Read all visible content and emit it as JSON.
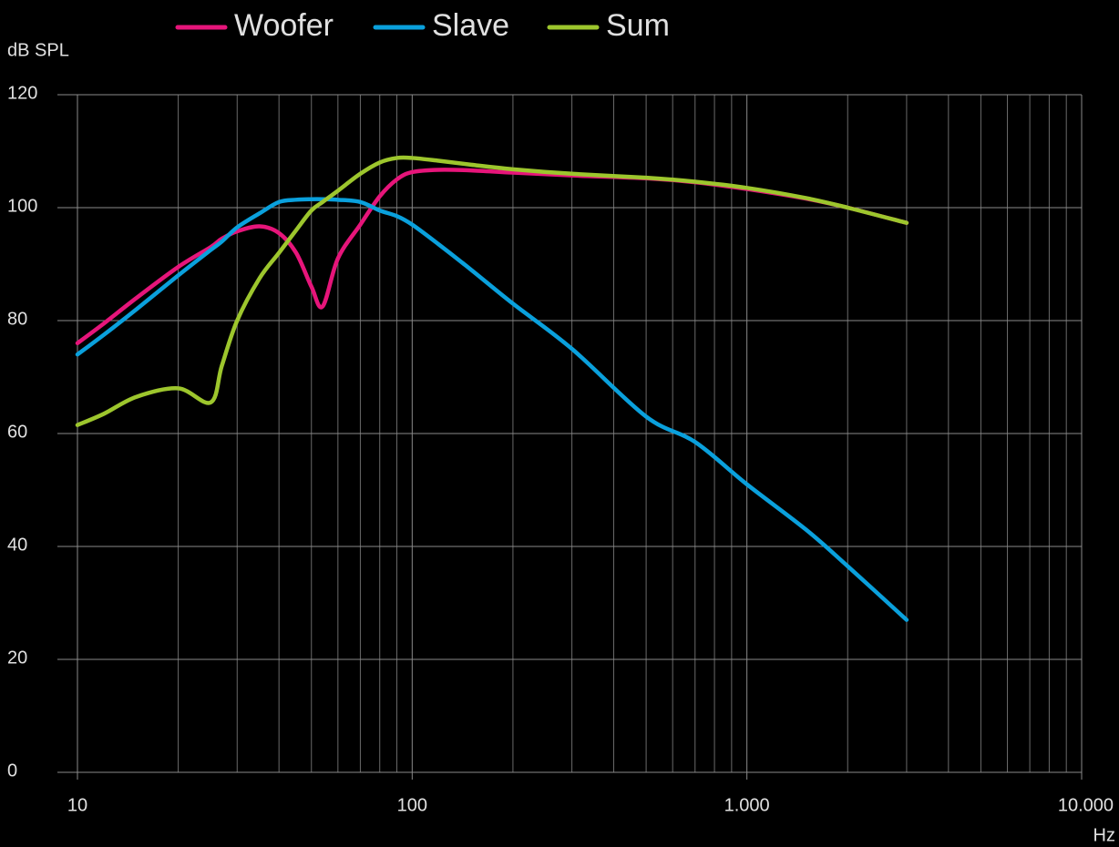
{
  "chart_data": {
    "type": "line",
    "ylabel": "dB SPL",
    "xlabel": "Hz",
    "x": [
      10,
      12,
      15,
      20,
      25,
      27,
      30,
      35,
      40,
      45,
      50,
      54,
      60,
      70,
      80,
      90,
      100,
      120,
      150,
      200,
      300,
      500,
      700,
      1000,
      1500,
      2000,
      3000
    ],
    "series": [
      {
        "name": "Woofer",
        "color": "#e6157a",
        "values": [
          76,
          79.5,
          84,
          89.5,
          93,
          94.5,
          95.8,
          96.7,
          95.5,
          92,
          86,
          82.5,
          91,
          97,
          102,
          105,
          106.3,
          106.7,
          106.6,
          106.2,
          105.7,
          105.2,
          104.5,
          103.3,
          101.6,
          100,
          97.3
        ]
      },
      {
        "name": "Slave",
        "color": "#0aa0dc",
        "values": [
          74,
          77.5,
          82,
          88,
          92.5,
          94,
          96.5,
          99,
          101,
          101.4,
          101.5,
          101.5,
          101.4,
          101,
          99.5,
          98.5,
          97,
          93.5,
          89,
          83,
          75,
          63,
          58.5,
          51,
          43,
          36.5,
          27
        ]
      },
      {
        "name": "Sum",
        "color": "#9dc62d",
        "values": [
          61.5,
          63.5,
          66.5,
          68,
          65.5,
          72,
          80,
          87.5,
          92,
          96,
          99.5,
          101,
          103,
          106,
          108,
          108.8,
          108.8,
          108.3,
          107.6,
          106.8,
          106,
          105.3,
          104.6,
          103.5,
          101.7,
          100,
          97.3
        ]
      }
    ],
    "xlim": [
      10,
      10000
    ],
    "ylim": [
      0,
      120
    ],
    "xticks": [
      10,
      100,
      {
        "value": 1000,
        "label": "1.000"
      },
      {
        "value": 10000,
        "label": "10.000"
      }
    ],
    "yticks": [
      0,
      20,
      40,
      60,
      80,
      100,
      120
    ],
    "xscale": "log",
    "grid": true,
    "legend": "top"
  }
}
